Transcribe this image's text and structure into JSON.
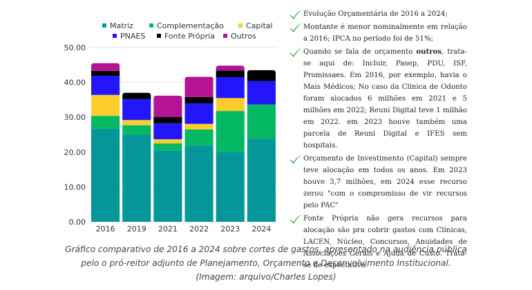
{
  "chart_data": {
    "type": "bar",
    "stacked": true,
    "title": "",
    "xlabel": "",
    "ylabel": "",
    "categories": [
      "2016",
      "2019",
      "2021",
      "2022",
      "2023",
      "2024"
    ],
    "ylim": [
      0,
      50
    ],
    "yticks": [
      "0.00",
      "10.00",
      "20.00",
      "30.00",
      "40.00",
      "50.00"
    ],
    "ytick_values": [
      0,
      10,
      20,
      30,
      40,
      50
    ],
    "grid": true,
    "legend_position": "top",
    "series": [
      {
        "name": "Matriz",
        "color": "#05969a",
        "values": [
          26.7,
          24.9,
          20.5,
          21.9,
          20.0,
          23.8
        ]
      },
      {
        "name": "Complementação",
        "color": "#04b864",
        "values": [
          3.7,
          2.8,
          2.0,
          4.6,
          11.8,
          9.9
        ]
      },
      {
        "name": "Capital",
        "color": "#fccc2c",
        "values": [
          6.0,
          1.5,
          1.2,
          1.6,
          3.7,
          0.0
        ]
      },
      {
        "name": "PNAES",
        "color": "#2416fc",
        "values": [
          5.5,
          6.0,
          4.6,
          5.9,
          6.0,
          6.7
        ]
      },
      {
        "name": "Fonte Própria",
        "color": "#000000",
        "values": [
          1.4,
          1.8,
          1.8,
          1.8,
          1.9,
          3.1
        ]
      },
      {
        "name": "Outros",
        "color": "#b41494",
        "values": [
          2.2,
          0.0,
          6.1,
          5.8,
          1.4,
          0.0
        ]
      }
    ]
  },
  "notes": {
    "check_icon": "check-icon",
    "check_color": "#1fa32a",
    "items": [
      {
        "text_before": "Evolução Orçamentária de 2016 a 2024;",
        "bold": "",
        "text_after": ""
      },
      {
        "text_before": "Montante é menor nominalmente em relação a 2016; IPCA no período foi de 51%;",
        "bold": "",
        "text_after": ""
      },
      {
        "text_before": "Quando se fala de orçamento ",
        "bold": "outros",
        "text_after": ", trata-se aqui de: Incluir, Pasep, PDU, ISF, Promissaes. Em 2016, por exemplo, havia o Mais Médicos; No caso da Clinica de Odonto foram alocados 6 milhões em 2021 e 5 milhões em 2022; Reuni Digital teve 1 milhão em 2022. em 2023 houve também uma parcela de Reuni Digital e IFES sem hospitais."
      },
      {
        "text_before": "Orçamento de Investimento (Capital) sempre teve alocação em todos os anos. Em 2023 houve 3,7 milhões, em 2024 esse recurso zerou \"com o compromisso de vir recursos pelo PAC\"",
        "bold": "",
        "text_after": ""
      },
      {
        "text_before": "Fonte Própria não gera recursos para alocação são pra cobrir gastos com Clínicas, LACEN, Núcleo, Concursos, Anuidades de Associações Gerais e Ajuda de Custo. Trata-se de expectativa.",
        "bold": "",
        "text_after": ""
      }
    ]
  },
  "caption": {
    "line1": "Gráfico comparativo de 2016 a 2024 sobre cortes de gastos, apresentado na audiência pública",
    "line2": "pelo o pró-reitor adjunto de Planejamento, Orçamento e Desenvolvimento Institucional.",
    "line3": "(Imagem: arquivo/Charles Lopes)"
  }
}
